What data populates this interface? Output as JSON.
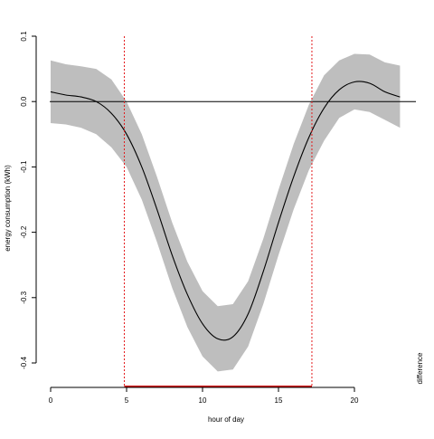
{
  "chart_data": {
    "type": "line",
    "title": "",
    "xlabel": "hour of day",
    "ylabel": "energy consumption (kWh)",
    "side_label": "difference",
    "xlim": [
      0,
      23.5
    ],
    "ylim": [
      -0.42,
      0.1
    ],
    "x_ticks": [
      0,
      5,
      10,
      15,
      20
    ],
    "x_tick_labels": [
      "0",
      "5",
      "10",
      "15",
      "20"
    ],
    "y_ticks": [
      -0.4,
      -0.3,
      -0.2,
      -0.1,
      0.0,
      0.1
    ],
    "y_tick_labels": [
      "-0.4",
      "-0.3",
      "-0.2",
      "-0.1",
      "0.0",
      "0.1"
    ],
    "grid": false,
    "reference_line_y": 0.0,
    "vertical_lines_x": [
      4.85,
      17.2
    ],
    "significant_interval": [
      4.85,
      17.2
    ],
    "colors": {
      "line": "#000000",
      "band": "#bebebe",
      "vertical_lines": "#e31a1c",
      "interval_bar": "#cc0000"
    },
    "series": [
      {
        "x": [
          0,
          1,
          2,
          3,
          4,
          5,
          6,
          7,
          8,
          9,
          10,
          11,
          12,
          13,
          14,
          15,
          16,
          17,
          18,
          19,
          20,
          21,
          22,
          23
        ],
        "estimate": [
          0.015,
          0.01,
          0.007,
          0.0,
          -0.018,
          -0.05,
          -0.1,
          -0.165,
          -0.235,
          -0.295,
          -0.34,
          -0.363,
          -0.36,
          -0.325,
          -0.26,
          -0.185,
          -0.115,
          -0.055,
          -0.01,
          0.018,
          0.03,
          0.028,
          0.015,
          0.007
        ],
        "lower": [
          -0.033,
          -0.035,
          -0.04,
          -0.05,
          -0.07,
          -0.1,
          -0.15,
          -0.215,
          -0.285,
          -0.345,
          -0.39,
          -0.413,
          -0.41,
          -0.375,
          -0.31,
          -0.235,
          -0.165,
          -0.105,
          -0.06,
          -0.025,
          -0.012,
          -0.016,
          -0.028,
          -0.04
        ],
        "upper": [
          0.063,
          0.057,
          0.054,
          0.05,
          0.034,
          0.0,
          -0.05,
          -0.115,
          -0.185,
          -0.245,
          -0.29,
          -0.313,
          -0.31,
          -0.275,
          -0.21,
          -0.135,
          -0.065,
          -0.005,
          0.04,
          0.063,
          0.073,
          0.072,
          0.06,
          0.055
        ]
      }
    ]
  }
}
